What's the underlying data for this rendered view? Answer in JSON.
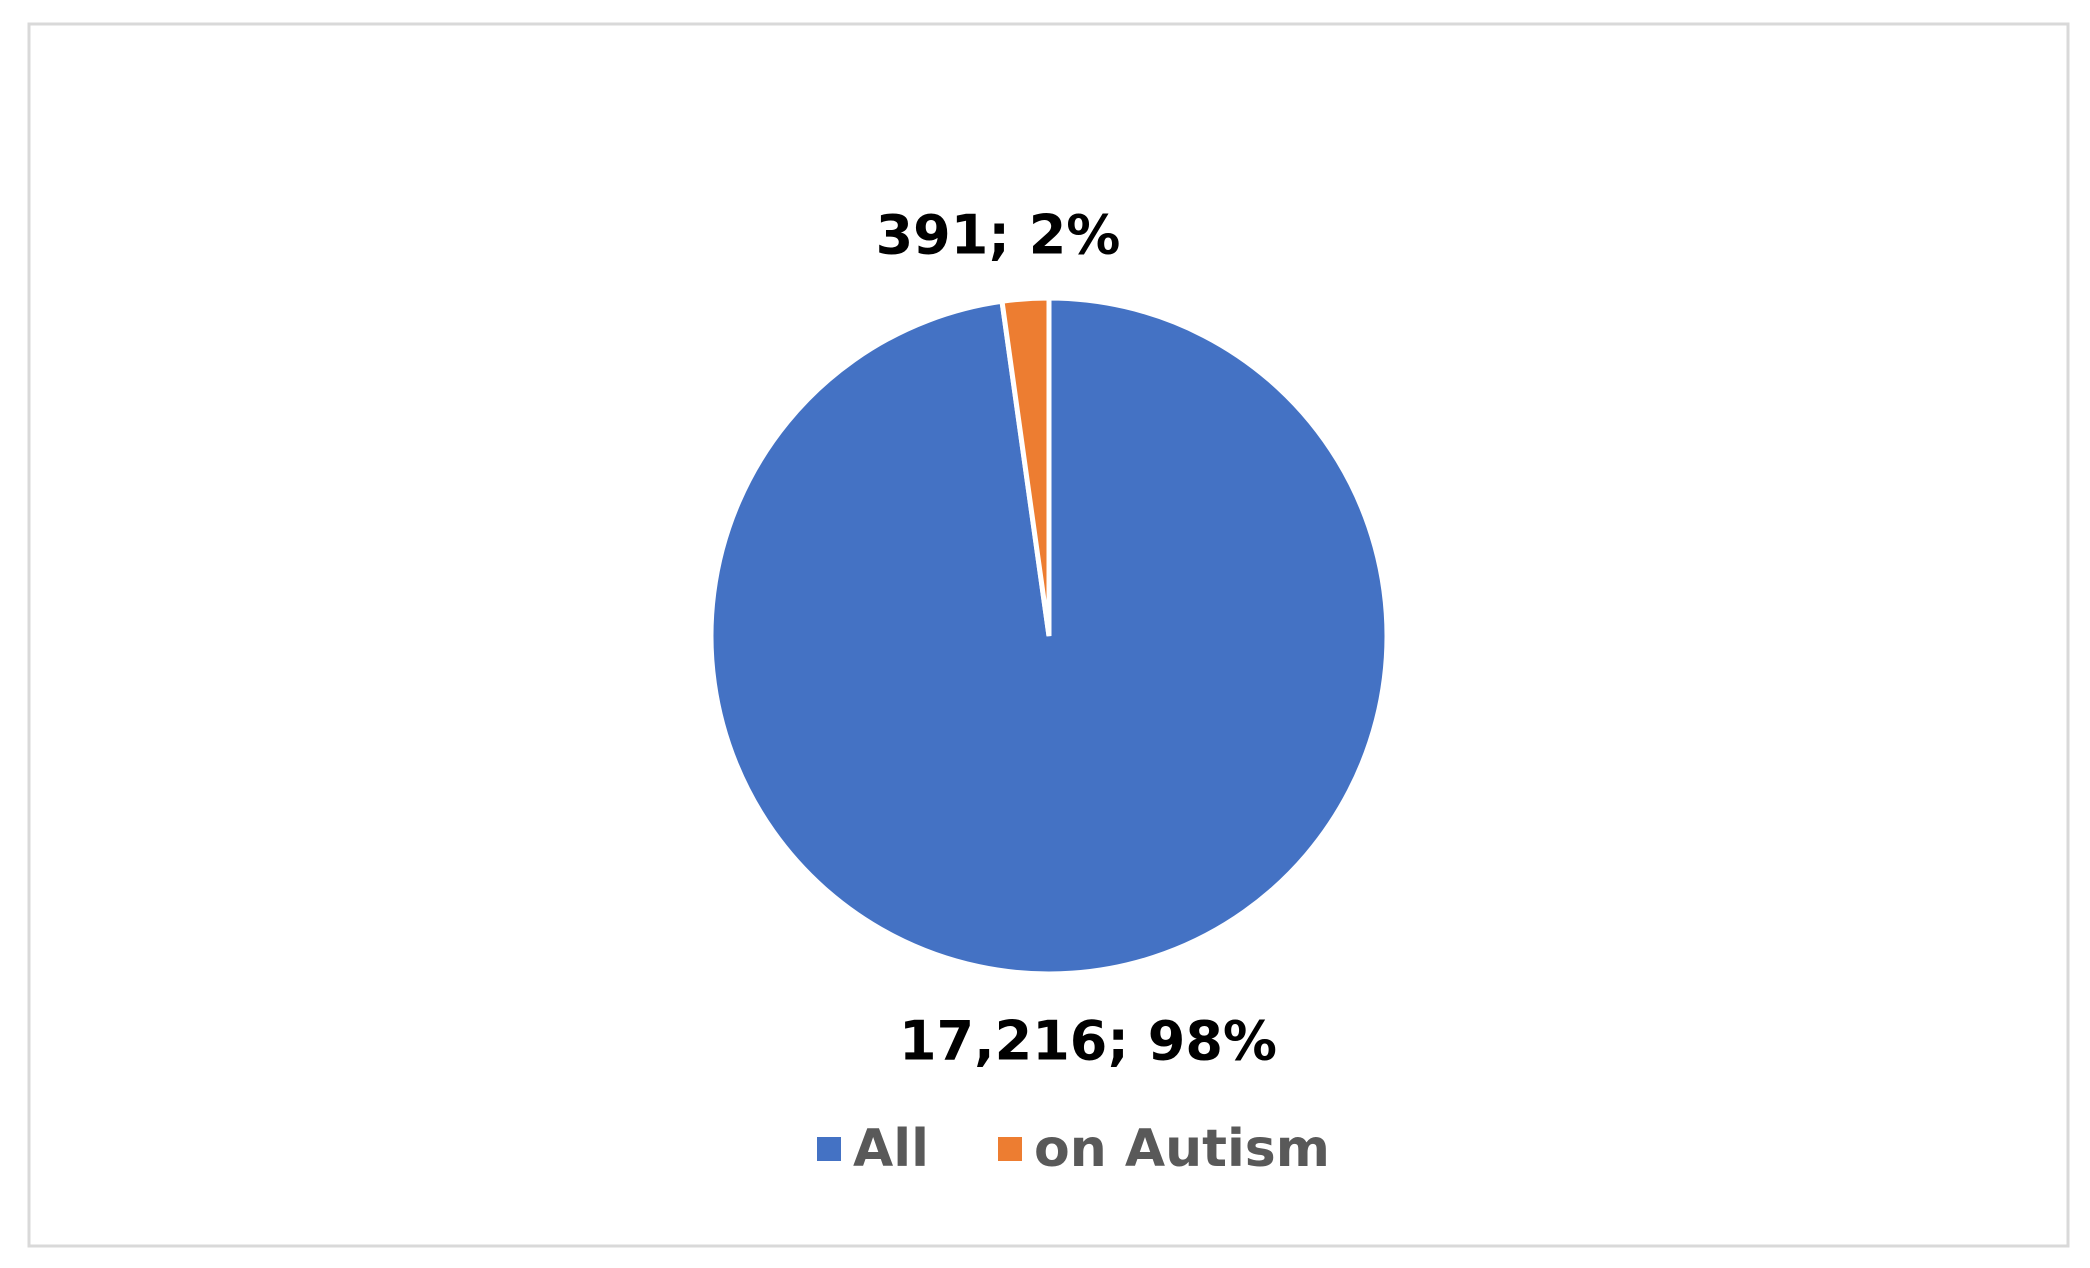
{
  "chart_data": {
    "type": "pie",
    "categories": [
      "All",
      "on Autism"
    ],
    "values": [
      17216,
      391
    ],
    "value_labels": [
      "17,216; 98%",
      "391; 2%"
    ],
    "colors": [
      "#4472c4",
      "#ed7d31"
    ],
    "legend": "bottom"
  }
}
